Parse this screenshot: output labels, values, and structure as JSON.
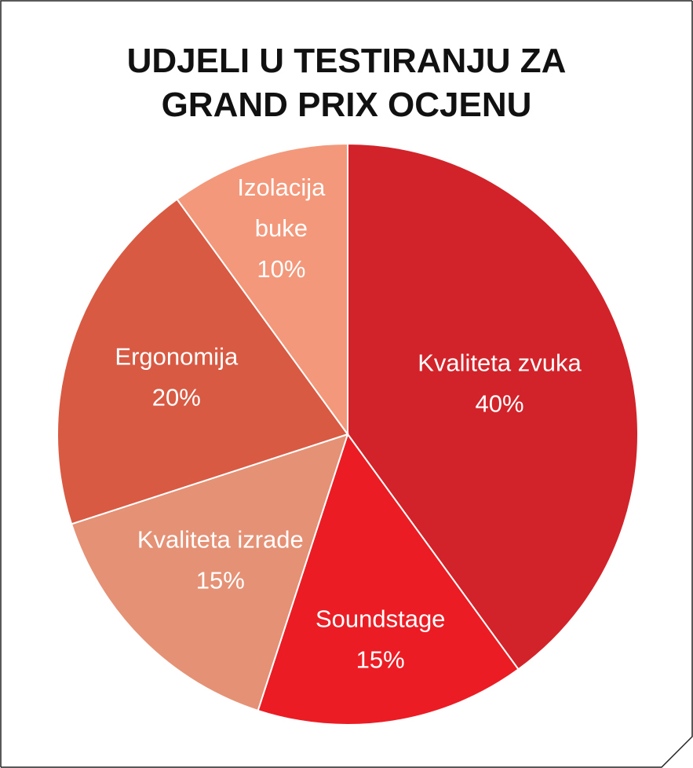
{
  "chart_data": {
    "type": "pie",
    "title": [
      "UDJELI U TESTIRANJU ZA",
      "GRAND PRIX OCJENU"
    ],
    "slices": [
      {
        "name": "Kvaliteta zvuka",
        "label_lines": [
          "Kvaliteta zvuka"
        ],
        "value": 40,
        "value_label": "40%",
        "color": "#d2232a"
      },
      {
        "name": "Soundstage",
        "label_lines": [
          "Soundstage"
        ],
        "value": 15,
        "value_label": "15%",
        "color": "#ec1c24"
      },
      {
        "name": "Kvaliteta izrade",
        "label_lines": [
          "Kvaliteta izrade"
        ],
        "value": 15,
        "value_label": "15%",
        "color": "#e59176"
      },
      {
        "name": "Ergonomija",
        "label_lines": [
          "Ergonomija"
        ],
        "value": 20,
        "value_label": "20%",
        "color": "#d95a43"
      },
      {
        "name": "Izolacija buke",
        "label_lines": [
          "Izolacija",
          "buke"
        ],
        "value": 10,
        "value_label": "10%",
        "color": "#f3987a"
      }
    ],
    "start_angle_deg": 0,
    "direction": "clockwise"
  }
}
